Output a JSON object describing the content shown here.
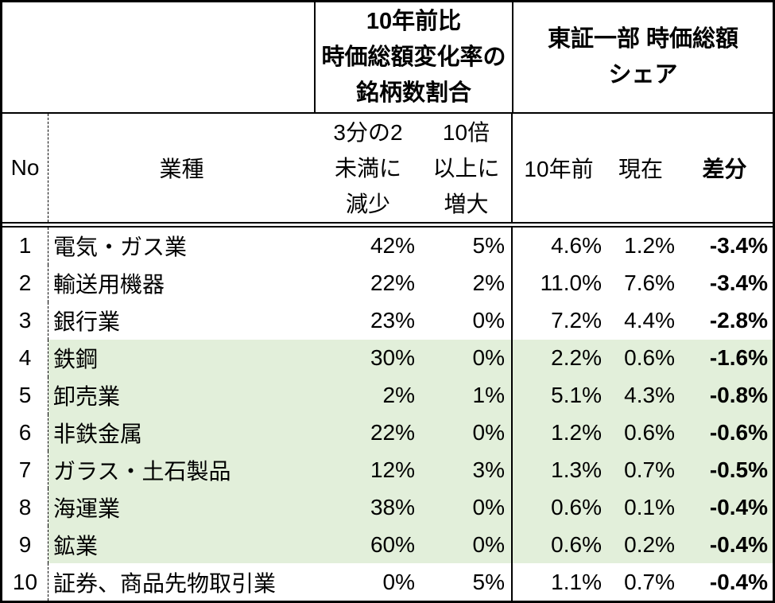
{
  "colors": {
    "highlight_row_bg": "#e2efda",
    "border": "#000000",
    "text": "#000000"
  },
  "table": {
    "header_groups": {
      "change_ratio": {
        "line1": "10年前比",
        "line2": "時価総額変化率の",
        "line3": "銘柄数割合"
      },
      "share": {
        "line1": "東証一部 時価総額",
        "line2": "シェア"
      }
    },
    "columns": {
      "no": "No",
      "industry": "業種",
      "decrease": {
        "line1": "3分の2",
        "line2": "未満に",
        "line3": "減少"
      },
      "increase": {
        "line1": "10倍",
        "line2": "以上に",
        "line3": "増大"
      },
      "ten_years_ago": "10年前",
      "current": "現在",
      "difference": "差分"
    },
    "rows": [
      {
        "no": "1",
        "industry": "電気・ガス業",
        "decrease": "42%",
        "increase": "5%",
        "ten_years_ago": "4.6%",
        "current": "1.2%",
        "difference": "-3.4%",
        "highlighted": false
      },
      {
        "no": "2",
        "industry": "輸送用機器",
        "decrease": "22%",
        "increase": "2%",
        "ten_years_ago": "11.0%",
        "current": "7.6%",
        "difference": "-3.4%",
        "highlighted": false
      },
      {
        "no": "3",
        "industry": "銀行業",
        "decrease": "23%",
        "increase": "0%",
        "ten_years_ago": "7.2%",
        "current": "4.4%",
        "difference": "-2.8%",
        "highlighted": false
      },
      {
        "no": "4",
        "industry": "鉄鋼",
        "decrease": "30%",
        "increase": "0%",
        "ten_years_ago": "2.2%",
        "current": "0.6%",
        "difference": "-1.6%",
        "highlighted": true
      },
      {
        "no": "5",
        "industry": "卸売業",
        "decrease": "2%",
        "increase": "1%",
        "ten_years_ago": "5.1%",
        "current": "4.3%",
        "difference": "-0.8%",
        "highlighted": true
      },
      {
        "no": "6",
        "industry": "非鉄金属",
        "decrease": "22%",
        "increase": "0%",
        "ten_years_ago": "1.2%",
        "current": "0.6%",
        "difference": "-0.6%",
        "highlighted": true
      },
      {
        "no": "7",
        "industry": "ガラス・土石製品",
        "decrease": "12%",
        "increase": "3%",
        "ten_years_ago": "1.3%",
        "current": "0.7%",
        "difference": "-0.5%",
        "highlighted": true
      },
      {
        "no": "8",
        "industry": "海運業",
        "decrease": "38%",
        "increase": "0%",
        "ten_years_ago": "0.6%",
        "current": "0.1%",
        "difference": "-0.4%",
        "highlighted": true
      },
      {
        "no": "9",
        "industry": "鉱業",
        "decrease": "60%",
        "increase": "0%",
        "ten_years_ago": "0.6%",
        "current": "0.2%",
        "difference": "-0.4%",
        "highlighted": true
      },
      {
        "no": "10",
        "industry": "証券、商品先物取引業",
        "decrease": "0%",
        "increase": "5%",
        "ten_years_ago": "1.1%",
        "current": "0.7%",
        "difference": "-0.4%",
        "highlighted": false
      }
    ]
  },
  "chart_data": {
    "type": "table",
    "title": "",
    "column_groups": [
      {
        "label": "10年前比 時価総額変化率の 銘柄数割合",
        "columns": [
          "3分の2未満に減少",
          "10倍以上に増大"
        ]
      },
      {
        "label": "東証一部 時価総額 シェア",
        "columns": [
          "10年前",
          "現在",
          "差分"
        ]
      }
    ],
    "columns": [
      "No",
      "業種",
      "3分の2未満に減少",
      "10倍以上に増大",
      "10年前",
      "現在",
      "差分"
    ],
    "rows": [
      [
        1,
        "電気・ガス業",
        42,
        5,
        4.6,
        1.2,
        -3.4
      ],
      [
        2,
        "輸送用機器",
        22,
        2,
        11.0,
        7.6,
        -3.4
      ],
      [
        3,
        "銀行業",
        23,
        0,
        7.2,
        4.4,
        -2.8
      ],
      [
        4,
        "鉄鋼",
        30,
        0,
        2.2,
        0.6,
        -1.6
      ],
      [
        5,
        "卸売業",
        2,
        1,
        5.1,
        4.3,
        -0.8
      ],
      [
        6,
        "非鉄金属",
        22,
        0,
        1.2,
        0.6,
        -0.6
      ],
      [
        7,
        "ガラス・土石製品",
        12,
        3,
        1.3,
        0.7,
        -0.5
      ],
      [
        8,
        "海運業",
        38,
        0,
        0.6,
        0.1,
        -0.4
      ],
      [
        9,
        "鉱業",
        60,
        0,
        0.6,
        0.2,
        -0.4
      ],
      [
        10,
        "証券、商品先物取引業",
        0,
        5,
        1.1,
        0.7,
        -0.4
      ]
    ],
    "units": "percent",
    "highlighted_row_numbers": [
      4,
      5,
      6,
      7,
      8,
      9
    ]
  }
}
